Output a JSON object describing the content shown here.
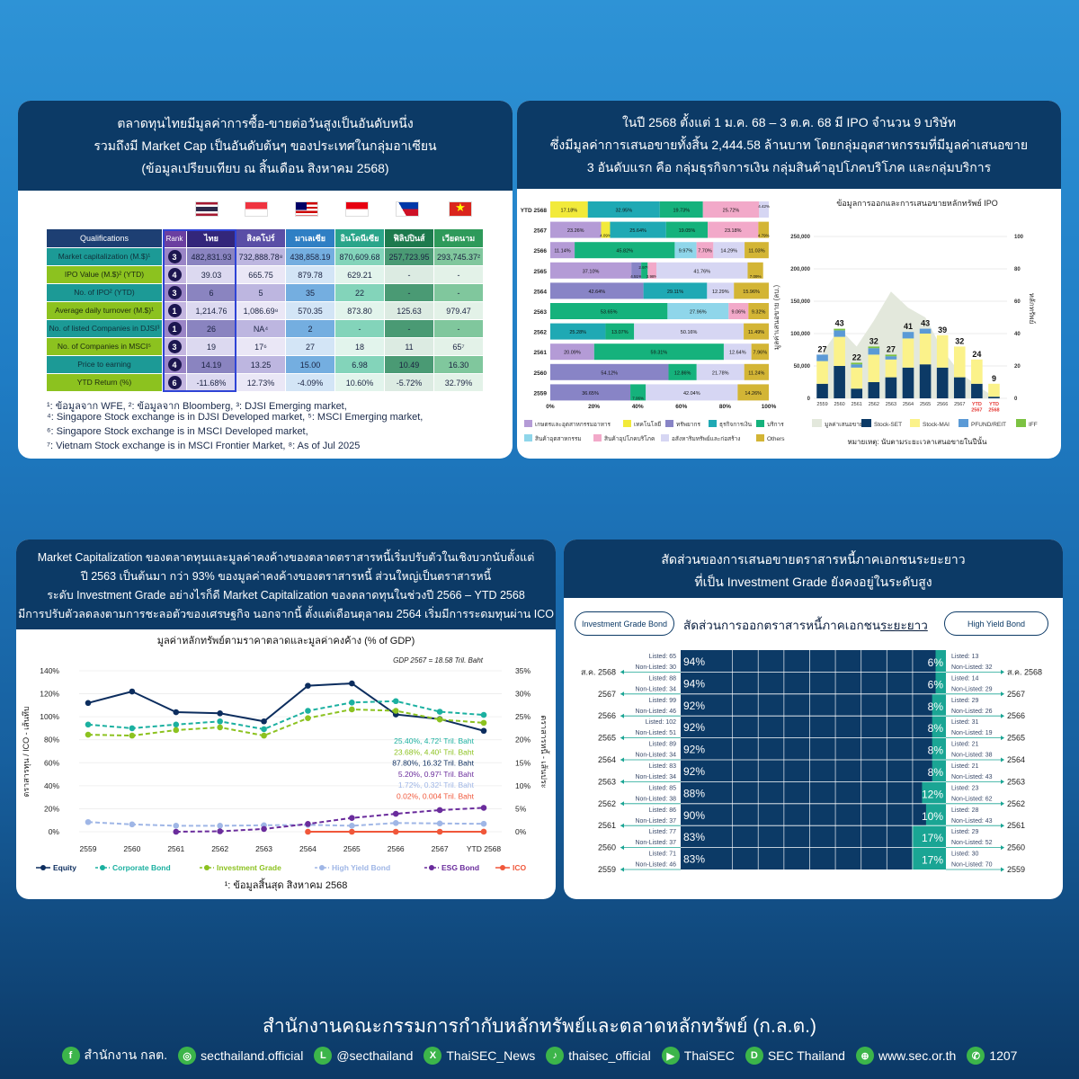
{
  "panel1": {
    "header": [
      "ตลาดทุนไทยมีมูลค่าการซื้อ-ขายต่อวันสูงเป็นอันดับหนึ่ง",
      "รวมถึงมี Market Cap เป็นอันดับต้นๆ ของประเทศในกลุ่มอาเซียน",
      "(ข้อมูลเปรียบเทียบ ณ สิ้นเดือน สิงหาคม 2568)"
    ],
    "flags": [
      "thailand-flag",
      "singapore-flag",
      "malaysia-flag",
      "indonesia-flag",
      "philippines-flag",
      "vietnam-flag"
    ],
    "columns": [
      "Qualifications",
      "Rank",
      "ไทย",
      "สิงคโปร์",
      "มาเลเซีย",
      "อินโดนีเซีย",
      "ฟิลิปปินส์",
      "เวียดนาม"
    ],
    "column_colors": [
      "#1d3f73",
      "#6b3fa0",
      "#33267a",
      "#5a4ea6",
      "#2f7fc4",
      "#2aa58a",
      "#1d7a4d",
      "#2e9a5a"
    ],
    "rows": [
      {
        "label": "Market capitalization (M.$)¹",
        "rank": "3",
        "values": [
          "482,831.93",
          "732,888.78⁸",
          "438,858.19",
          "870,609.68",
          "257,723.95",
          "293,745.37²"
        ]
      },
      {
        "label": "IPO Value (M.$)² (YTD)",
        "rank": "4",
        "values": [
          "39.03",
          "665.75",
          "879.78",
          "629.21",
          "-",
          "-"
        ]
      },
      {
        "label": "No. of IPO² (YTD)",
        "rank": "3",
        "values": [
          "6",
          "5",
          "35",
          "22",
          "-",
          "-"
        ]
      },
      {
        "label": "Average daily turnover (M.$)¹",
        "rank": "1",
        "values": [
          "1,214.76",
          "1,086.69⁸",
          "570.35",
          "873.80",
          "125.63",
          "979.47"
        ]
      },
      {
        "label": "No. of listed Companies in DJSI³",
        "rank": "1",
        "values": [
          "26",
          "NA⁴",
          "2",
          "-",
          "-",
          "-"
        ]
      },
      {
        "label": "No. of Companies in MSCI⁵",
        "rank": "3",
        "values": [
          "19",
          "17⁶",
          "27",
          "18",
          "11",
          "65⁷"
        ]
      },
      {
        "label": "Price to earning",
        "rank": "4",
        "values": [
          "14.19",
          "13.25",
          "15.00",
          "6.98",
          "10.49",
          "16.30"
        ]
      },
      {
        "label": "YTD Return (%)",
        "rank": "6",
        "values": [
          "-11.68%",
          "12.73%",
          "-4.09%",
          "10.60%",
          "-5.72%",
          "32.79%"
        ]
      }
    ],
    "notes": [
      "¹: ข้อมูลจาก WFE, ²: ข้อมูลจาก Bloomberg, ³: DJSI Emerging market,",
      "⁴: Singapore Stock exchange is in DJSI Developed market, ⁵: MSCI Emerging market,",
      "⁶: Singapore Stock exchange is in MSCI Developed market,",
      "⁷: Vietnam Stock exchange is in MSCI Frontier Market, ⁸: As of Jul 2025"
    ]
  },
  "panel2": {
    "header": [
      "ในปี 2568 ตั้งแต่ 1 ม.ค. 68 – 3 ต.ค. 68 มี IPO จำนวน  9 บริษัท",
      "ซึ่งมีมูลค่าการเสนอขายทั้งสิ้น  2,444.58 ล้านบาท โดยกลุ่มอุตสาหกรรมที่มีมูลค่าเสนอขาย",
      "3 อันดับแรก คือ กลุ่มธุรกิจการเงิน กลุ่มสินค้าอุปโภคบริโภค และกลุ่มบริการ"
    ]
  },
  "chart_data": [
    {
      "type": "bar",
      "orientation": "horizontal-stacked-100",
      "categories": [
        "YTD 2568",
        "2567",
        "2566",
        "2565",
        "2564",
        "2563",
        "2562",
        "2561",
        "2560",
        "2559"
      ],
      "xlim": [
        0,
        100
      ],
      "xticks": [
        "0%",
        "20%",
        "40%",
        "60%",
        "80%",
        "100%"
      ],
      "series_names": [
        "เกษตรและอุตสาหกรรมอาหาร",
        "เทคโนโลยี",
        "ทรัพยากร",
        "ธุรกิจการเงิน",
        "บริการ",
        "สินค้าอุตสาหกรรม",
        "สินค้าอุปโภคบริโภค",
        "อสังหาริมทรัพย์และก่อสร้าง",
        "Others"
      ],
      "series_colors": [
        "#b49bd6",
        "#f2ea3a",
        "#8884c6",
        "#1fa9b4",
        "#15b27c",
        "#8fd6ea",
        "#f2a9c9",
        "#d6d6f3",
        "#d3b535"
      ],
      "legend": "bottom",
      "rows": [
        [
          [
            1,
            17.18
          ],
          [
            3,
            32.95
          ],
          [
            4,
            19.73
          ],
          [
            6,
            25.72
          ],
          [
            7,
            4.42
          ]
        ],
        [
          [
            0,
            23.26
          ],
          [
            1,
            4.09
          ],
          [
            3,
            25.64
          ],
          [
            4,
            19.05
          ],
          [
            6,
            23.18
          ],
          [
            8,
            4.79
          ]
        ],
        [
          [
            0,
            11.14
          ],
          [
            4,
            45.82
          ],
          [
            5,
            9.97
          ],
          [
            6,
            7.7
          ],
          [
            7,
            14.29
          ],
          [
            8,
            11.03
          ]
        ],
        [
          [
            0,
            37.1
          ],
          [
            2,
            4.51
          ],
          [
            4,
            2.97
          ],
          [
            6,
            3.98
          ],
          [
            7,
            41.76
          ],
          [
            8,
            7.09
          ]
        ],
        [
          [
            2,
            42.64
          ],
          [
            3,
            29.11
          ],
          [
            7,
            12.29
          ],
          [
            8,
            15.96
          ]
        ],
        [
          [
            4,
            53.65
          ],
          [
            5,
            27.96
          ],
          [
            6,
            9.06
          ],
          [
            8,
            9.32
          ]
        ],
        [
          [
            3,
            25.28
          ],
          [
            4,
            13.07
          ],
          [
            7,
            50.16
          ],
          [
            8,
            11.49
          ]
        ],
        [
          [
            0,
            20.09
          ],
          [
            4,
            59.31
          ],
          [
            7,
            12.64
          ],
          [
            8,
            7.96
          ]
        ],
        [
          [
            2,
            54.12
          ],
          [
            4,
            12.86
          ],
          [
            7,
            21.78
          ],
          [
            8,
            11.24
          ]
        ],
        [
          [
            2,
            36.65
          ],
          [
            4,
            7.06
          ],
          [
            7,
            42.04
          ],
          [
            8,
            14.26
          ]
        ]
      ]
    },
    {
      "type": "bar",
      "orientation": "vertical-stacked-with-area",
      "title": "ข้อมูลการออกและการเสนอขายหลักทรัพย์ IPO",
      "ylabel": "มูลค่าเสนอขาย (ลบ.)",
      "y2label": "หลักทรัพย์",
      "ylim": [
        0,
        250000
      ],
      "y2lim": [
        0,
        100
      ],
      "yticks": [
        "0",
        "50,000",
        "100,000",
        "150,000",
        "200,000",
        "250,000"
      ],
      "y2ticks": [
        "0",
        "20",
        "40",
        "60",
        "80",
        "100"
      ],
      "categories": [
        "2559",
        "2560",
        "2561",
        "2562",
        "2563",
        "2564",
        "2565",
        "2566",
        "2567",
        "YTD 2567",
        "YTD 2568"
      ],
      "highlight_categories_color": "#e53935",
      "area": {
        "name": "มูลค่าเสนอขาย",
        "color": "#e3e8dc",
        "values": [
          70000,
          108000,
          80000,
          120000,
          165000,
          140000,
          125000,
          75000,
          40000,
          20000,
          2445
        ]
      },
      "series": [
        {
          "name": "Stock-SET",
          "color": "#0c3a66",
          "values": [
            9,
            20,
            6,
            10,
            13,
            19,
            21,
            19,
            13,
            9,
            1
          ]
        },
        {
          "name": "Stock-MAI",
          "color": "#fbf28a",
          "values": [
            14,
            18,
            13,
            17,
            11,
            18,
            19,
            20,
            19,
            15,
            8
          ]
        },
        {
          "name": "PFUND/REIT",
          "color": "#5b9ad6",
          "values": [
            4,
            4,
            2,
            4,
            2,
            4,
            3,
            0,
            0,
            0,
            0
          ]
        },
        {
          "name": "IFF",
          "color": "#7cc242",
          "values": [
            0,
            1,
            1,
            1,
            1,
            0,
            0,
            0,
            0,
            0,
            0
          ]
        }
      ],
      "totals": [
        "27",
        "43",
        "22",
        "32",
        "27",
        "41",
        "43",
        "39",
        "32",
        "24",
        "9"
      ],
      "note": "หมายเหตุ: นับตามระยะเวลาเสนอขายในปีนั้น",
      "legend": "bottom"
    },
    {
      "type": "line",
      "title": "มูลค่าหลักทรัพย์ตามราคาตลาดและมูลค่าคงค้าง (% of GDP)",
      "annotation": "GDP 2567 = 18.58 Tril. Baht",
      "ylabel": "ตราสารทุน / ICO - เส้นทึบ",
      "y2label": "ตราสารหนี้ - เส้นประ",
      "ylim": [
        0,
        140
      ],
      "y2lim": [
        0,
        35
      ],
      "yticks": [
        "0%",
        "20%",
        "40%",
        "60%",
        "80%",
        "100%",
        "120%",
        "140%"
      ],
      "y2ticks": [
        "0%",
        "5%",
        "10%",
        "15%",
        "20%",
        "25%",
        "30%",
        "35%"
      ],
      "x": [
        "2559",
        "2560",
        "2561",
        "2562",
        "2563",
        "2564",
        "2565",
        "2566",
        "2567",
        "YTD 2568"
      ],
      "series": [
        {
          "name": "Equity",
          "color": "#0c2d5e",
          "axis": "left",
          "dashed": false,
          "values": [
            112,
            122,
            104,
            103,
            96,
            127,
            129,
            102,
            98,
            87.8
          ]
        },
        {
          "name": "Corporate Bond",
          "color": "#1bb0a0",
          "axis": "right",
          "dashed": true,
          "values": [
            23.3,
            22.5,
            23.3,
            24.0,
            22.3,
            26.3,
            28.1,
            28.4,
            26.1,
            25.4
          ]
        },
        {
          "name": "Investment Grade",
          "color": "#8cc220",
          "axis": "right",
          "dashed": true,
          "values": [
            21.1,
            20.9,
            22.1,
            22.7,
            20.9,
            24.7,
            26.6,
            26.3,
            24.4,
            23.68
          ]
        },
        {
          "name": "High Yield Bond",
          "color": "#9fb6e6",
          "axis": "right",
          "dashed": true,
          "values": [
            2.1,
            1.6,
            1.3,
            1.3,
            1.4,
            1.5,
            1.3,
            1.9,
            1.8,
            1.72
          ]
        },
        {
          "name": "ESG Bond",
          "color": "#6a2c9c",
          "axis": "right",
          "dashed": true,
          "values": [
            null,
            null,
            0.0,
            0.1,
            0.6,
            1.7,
            3.0,
            3.9,
            4.7,
            5.2
          ]
        },
        {
          "name": "ICO",
          "color": "#f0573a",
          "axis": "left",
          "dashed": false,
          "values": [
            null,
            null,
            null,
            null,
            null,
            0,
            0,
            0,
            0,
            0.02
          ]
        }
      ],
      "value_labels": [
        {
          "text": "25.40%,  4.72¹ Tril. Baht",
          "color": "#1bb0a0"
        },
        {
          "text": "23.68%,  4.40¹ Tril. Baht",
          "color": "#8cc220"
        },
        {
          "text": "87.80%, 16.32 Tril. Baht",
          "color": "#0c2d5e"
        },
        {
          "text": "5.20%,  0.97¹ Tril. Baht",
          "color": "#6a2c9c"
        },
        {
          "text": "1.72%,  0.32¹ Tril. Baht",
          "color": "#9fb6e6"
        },
        {
          "text": "0.02%, 0.004 Tril. Baht",
          "color": "#f0573a"
        }
      ],
      "footnote": "¹: ข้อมูลสิ้นสุด สิงหาคม 2568",
      "legend": "bottom"
    },
    {
      "type": "bar",
      "orientation": "horizontal-stacked-100",
      "title": "สัดส่วนการออกตราสารหนี้ภาคเอกชนระยะยาว",
      "categories": [
        "ส.ค. 2568",
        "2567",
        "2566",
        "2565",
        "2564",
        "2563",
        "2562",
        "2561",
        "2560",
        "2559"
      ],
      "series": [
        {
          "name": "Investment Grade Bond",
          "color": "#0c3a66",
          "values": [
            94,
            94,
            92,
            92,
            92,
            92,
            88,
            90,
            83,
            83
          ],
          "listed": [
            "65",
            "88",
            "99",
            "102",
            "89",
            "83",
            "85",
            "86",
            "77",
            "71"
          ],
          "non_listed": [
            "30",
            "34",
            "46",
            "51",
            "34",
            "34",
            "38",
            "37",
            "37",
            "46"
          ]
        },
        {
          "name": "High Yield Bond",
          "color": "#1aa594",
          "values": [
            6,
            6,
            8,
            8,
            8,
            8,
            12,
            10,
            17,
            17
          ],
          "listed": [
            "13",
            "14",
            "29",
            "31",
            "21",
            "21",
            "23",
            "28",
            "29",
            "30"
          ],
          "non_listed": [
            "32",
            "29",
            "26",
            "19",
            "38",
            "43",
            "62",
            "43",
            "52",
            "70"
          ]
        }
      ]
    }
  ],
  "panel3": {
    "header": [
      "Market Capitalization ของตลาดทุนและมูลค่าคงค้างของตลาดตราสารหนี้เริ่มปรับตัวในเชิงบวกนับตั้งแต่",
      "ปี 2563 เป็นต้นมา กว่า 93% ของมูลค่าคงค้างของตราสารหนี้ ส่วนใหญ่เป็นตราสารหนี้",
      "ระดับ Investment Grade อย่างไรก็ดี Market Capitalization ของตลาดทุนในช่วงปี 2566 – YTD 2568",
      "มีการปรับตัวลดลงตามการชะลอตัวของเศรษฐกิจ นอกจากนี้ ตั้งแต่เดือนตุลาคม 2564 เริ่มมีการระดมทุนผ่าน ICO"
    ]
  },
  "panel4": {
    "header": [
      "สัดส่วนของการเสนอขายตราสารหนี้ภาคเอกชนระยะยาว",
      "ที่เป็น Investment Grade ยังคงอยู่ในระดับสูง"
    ],
    "ig_button": "Investment Grade Bond",
    "hy_button": "High Yield Bond",
    "title_main": "สัดส่วนการออกตราสารหนี้ภาคเอกชน",
    "title_underlined": "ระยะยาว",
    "listed_prefix": "Listed: ",
    "non_listed_prefix": "Non-Listed: "
  },
  "footer": {
    "title": "สำนักงานคณะกรรมการกำกับหลักทรัพย์และตลาดหลักทรัพย์ (ก.ล.ต.)",
    "socials": [
      {
        "icon": "facebook-icon",
        "glyph": "f",
        "label": "สำนักงาน กลต."
      },
      {
        "icon": "instagram-icon",
        "glyph": "◎",
        "label": "secthailand.official"
      },
      {
        "icon": "line-icon",
        "glyph": "L",
        "label": "@secthailand"
      },
      {
        "icon": "x-icon",
        "glyph": "X",
        "label": "ThaiSEC_News"
      },
      {
        "icon": "tiktok-icon",
        "glyph": "♪",
        "label": "thaisec_official"
      },
      {
        "icon": "youtube-icon",
        "glyph": "▶",
        "label": "ThaiSEC"
      },
      {
        "icon": "blockdit-icon",
        "glyph": "D",
        "label": "SEC Thailand"
      },
      {
        "icon": "globe-icon",
        "glyph": "⊕",
        "label": "www.sec.or.th"
      },
      {
        "icon": "phone-icon",
        "glyph": "✆",
        "label": "1207"
      }
    ],
    "accent": "#3cb54a"
  }
}
